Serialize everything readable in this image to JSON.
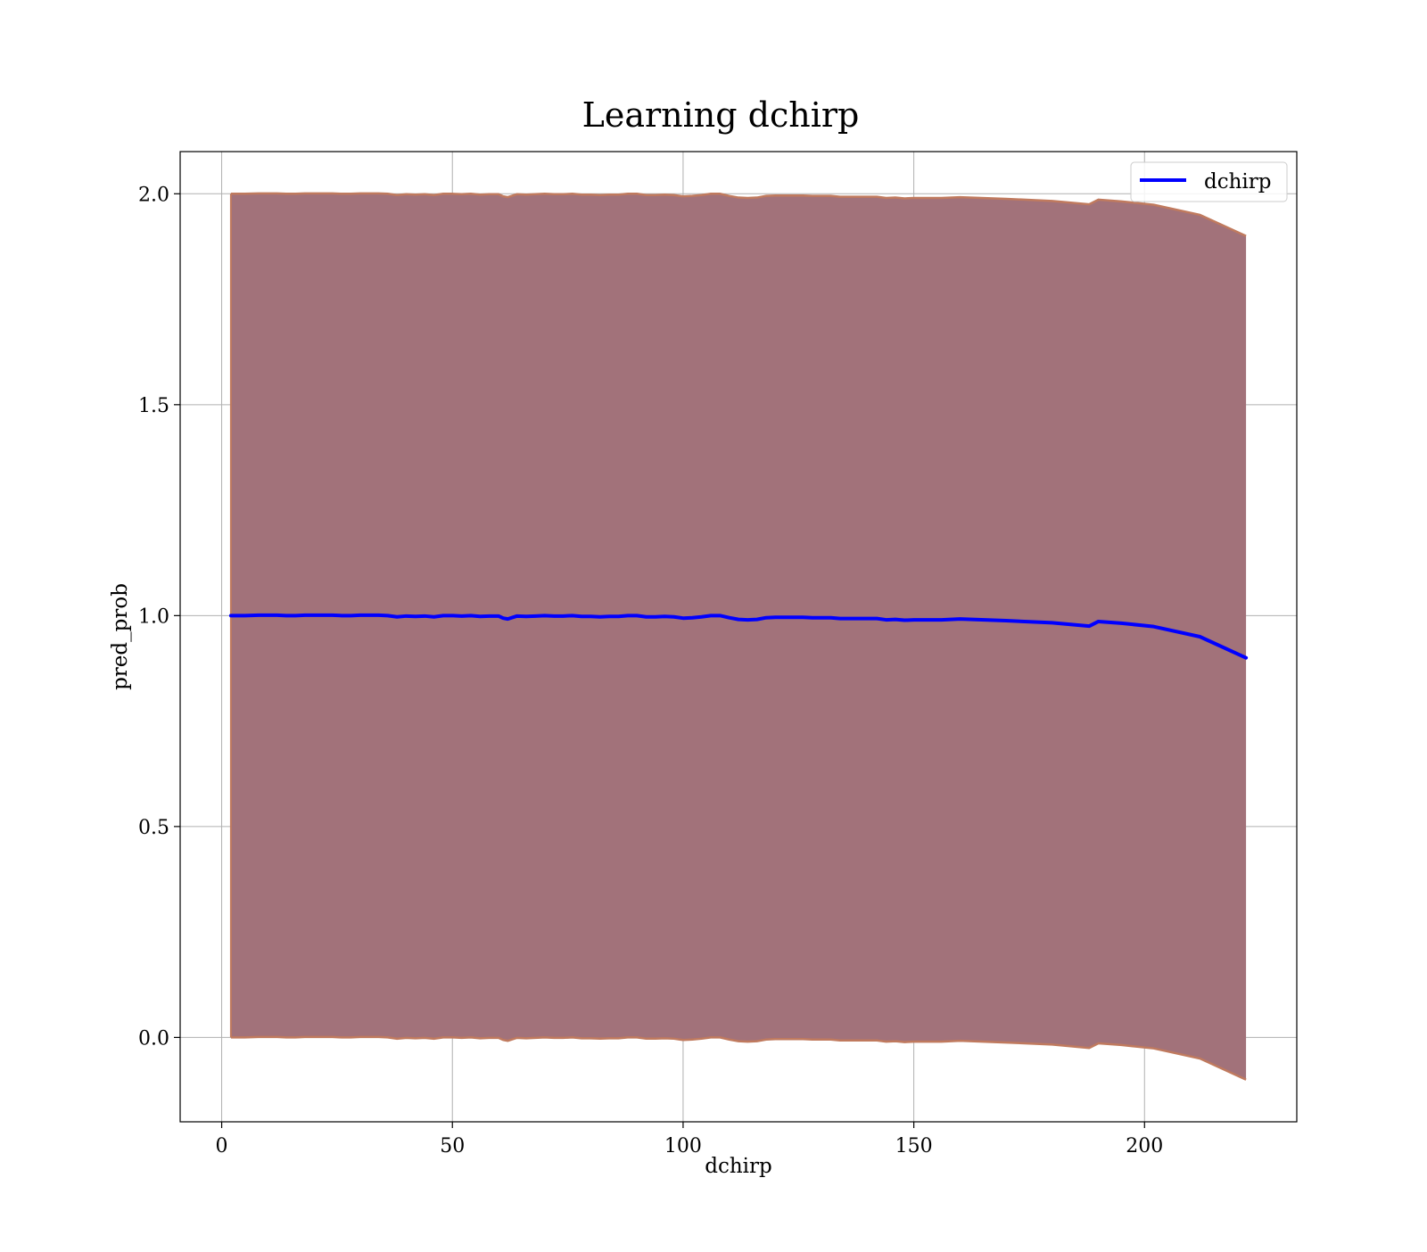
{
  "chart_data": {
    "type": "area",
    "title": "Learning dchirp",
    "xlabel": "dchirp",
    "ylabel": "pred_prob",
    "xlim": [
      -9,
      233
    ],
    "ylim": [
      -0.2,
      2.1
    ],
    "xticks": [
      0,
      50,
      100,
      150,
      200
    ],
    "yticks": [
      0.0,
      0.5,
      1.0,
      1.5,
      2.0
    ],
    "xtick_labels": [
      "0",
      "50",
      "100",
      "150",
      "200"
    ],
    "ytick_labels": [
      "0.0",
      "0.5",
      "1.0",
      "1.5",
      "2.0"
    ],
    "grid": true,
    "legend": {
      "position": "top-right",
      "entries": [
        "dchirp"
      ]
    },
    "colors": {
      "line": "#0000ff",
      "band_fill": "#a2727a",
      "band_edge": "#c07a5e"
    },
    "series": [
      {
        "name": "dchirp",
        "x": [
          2,
          5,
          8,
          10,
          12,
          14,
          16,
          18,
          20,
          22,
          24,
          26,
          28,
          30,
          32,
          34,
          36,
          38,
          40,
          42,
          44,
          46,
          48,
          50,
          52,
          54,
          56,
          58,
          60,
          61,
          62,
          64,
          66,
          68,
          70,
          72,
          74,
          76,
          78,
          80,
          82,
          84,
          86,
          88,
          90,
          92,
          94,
          96,
          98,
          100,
          102,
          104,
          106,
          108,
          110,
          112,
          114,
          116,
          118,
          120,
          122,
          124,
          126,
          128,
          130,
          132,
          134,
          136,
          138,
          140,
          142,
          144,
          146,
          148,
          150,
          152,
          156,
          160,
          170,
          180,
          188,
          190,
          195,
          202,
          212,
          222
        ],
        "y": [
          1.0,
          1.0,
          1.001,
          1.001,
          1.001,
          1.0,
          1.0,
          1.001,
          1.001,
          1.001,
          1.001,
          1.0,
          1.0,
          1.001,
          1.001,
          1.001,
          1.0,
          0.997,
          0.999,
          0.998,
          0.999,
          0.997,
          1.0,
          1.0,
          0.999,
          1.0,
          0.998,
          0.999,
          0.999,
          0.994,
          0.992,
          0.999,
          0.998,
          0.999,
          1.0,
          0.999,
          0.999,
          1.0,
          0.998,
          0.998,
          0.997,
          0.998,
          0.998,
          1.0,
          1.0,
          0.997,
          0.997,
          0.998,
          0.997,
          0.994,
          0.995,
          0.997,
          1.0,
          1.0,
          0.995,
          0.991,
          0.99,
          0.991,
          0.995,
          0.996,
          0.996,
          0.996,
          0.996,
          0.995,
          0.995,
          0.995,
          0.993,
          0.993,
          0.993,
          0.993,
          0.993,
          0.99,
          0.991,
          0.989,
          0.99,
          0.99,
          0.99,
          0.992,
          0.988,
          0.983,
          0.975,
          0.986,
          0.982,
          0.974,
          0.95,
          0.9
        ],
        "lower": [
          0.0,
          0.0,
          0.001,
          0.001,
          0.001,
          0.0,
          0.0,
          0.001,
          0.001,
          0.001,
          0.001,
          0.0,
          0.0,
          0.001,
          0.001,
          0.001,
          0.0,
          -0.003,
          -0.001,
          -0.002,
          -0.001,
          -0.003,
          0.0,
          0.0,
          -0.001,
          0.0,
          -0.002,
          -0.001,
          -0.001,
          -0.006,
          -0.008,
          -0.001,
          -0.002,
          -0.001,
          0.0,
          -0.001,
          -0.001,
          0.0,
          -0.002,
          -0.002,
          -0.003,
          -0.002,
          -0.002,
          0.0,
          0.0,
          -0.003,
          -0.003,
          -0.002,
          -0.003,
          -0.006,
          -0.005,
          -0.003,
          0.0,
          0.0,
          -0.005,
          -0.009,
          -0.01,
          -0.009,
          -0.005,
          -0.004,
          -0.004,
          -0.004,
          -0.004,
          -0.005,
          -0.005,
          -0.005,
          -0.007,
          -0.007,
          -0.007,
          -0.007,
          -0.007,
          -0.01,
          -0.009,
          -0.011,
          -0.01,
          -0.01,
          -0.01,
          -0.008,
          -0.012,
          -0.017,
          -0.025,
          -0.014,
          -0.018,
          -0.026,
          -0.05,
          -0.1
        ],
        "upper": [
          2.0,
          2.0,
          2.001,
          2.001,
          2.001,
          2.0,
          2.0,
          2.001,
          2.001,
          2.001,
          2.001,
          2.0,
          2.0,
          2.001,
          2.001,
          2.001,
          2.0,
          1.997,
          1.999,
          1.998,
          1.999,
          1.997,
          2.0,
          2.0,
          1.999,
          2.0,
          1.998,
          1.999,
          1.999,
          1.994,
          1.992,
          1.999,
          1.998,
          1.999,
          2.0,
          1.999,
          1.999,
          2.0,
          1.998,
          1.998,
          1.997,
          1.998,
          1.998,
          2.0,
          2.0,
          1.997,
          1.997,
          1.998,
          1.997,
          1.994,
          1.995,
          1.997,
          2.0,
          2.0,
          1.995,
          1.991,
          1.99,
          1.991,
          1.995,
          1.996,
          1.996,
          1.996,
          1.996,
          1.995,
          1.995,
          1.995,
          1.993,
          1.993,
          1.993,
          1.993,
          1.993,
          1.99,
          1.991,
          1.989,
          1.99,
          1.99,
          1.99,
          1.992,
          1.988,
          1.983,
          1.975,
          1.986,
          1.982,
          1.974,
          1.95,
          1.9
        ]
      }
    ]
  }
}
